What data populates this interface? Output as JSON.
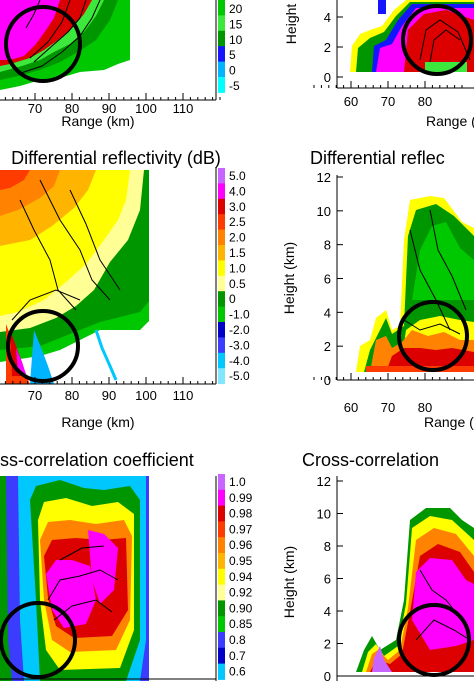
{
  "chart_data": [
    {
      "type": "heatmap",
      "title": "",
      "xlabel": "Range (km)",
      "x_ticks": [
        70,
        80,
        90,
        100,
        110
      ],
      "colorbar": [
        "20",
        "15",
        "10",
        "5",
        "0",
        "-5"
      ],
      "colorbar_colors": [
        "#00c800",
        "#3ce83c",
        "#009600",
        "#1414ff",
        "#00b4ff",
        "#00ffff"
      ],
      "circle_marker": true
    },
    {
      "type": "heatmap",
      "title": "",
      "ylabel": "Height (km)",
      "xlabel": "Range (km)",
      "x_ticks": [
        60,
        70,
        80
      ],
      "y_ticks": [
        0,
        2,
        4
      ]
    },
    {
      "type": "heatmap",
      "title": "Differential reflectivity (dB)",
      "xlabel": "Range (km)",
      "x_ticks": [
        70,
        80,
        90,
        100,
        110
      ],
      "colorbar": [
        "5.0",
        "4.0",
        "3.0",
        "2.5",
        "2.0",
        "1.5",
        "1.0",
        "0.5",
        "0",
        "-1.0",
        "-2.0",
        "-3.0",
        "-4.0",
        "-5.0"
      ],
      "colorbar_colors": [
        "#c864ff",
        "#ff00ff",
        "#dc0000",
        "#ff3c00",
        "#ff8200",
        "#ffb400",
        "#ffff00",
        "#ffff96",
        "#009600",
        "#00c800",
        "#0000c8",
        "#3c3cff",
        "#00c8ff",
        "#82e6ff"
      ]
    },
    {
      "type": "heatmap",
      "title": "Differential reflec",
      "ylabel": "Height (km)",
      "xlabel": "Range (km",
      "x_ticks": [
        60,
        70,
        80
      ],
      "y_ticks": [
        0,
        2,
        4,
        6,
        8,
        10,
        12
      ]
    },
    {
      "type": "heatmap",
      "title": "ss-correlation coefficient",
      "colorbar": [
        "1.0",
        "0.99",
        "0.98",
        "0.97",
        "0.96",
        "0.95",
        "0.94",
        "0.92",
        "0.90",
        "0.85",
        "0.8",
        "0.7",
        "0.6"
      ],
      "colorbar_colors": [
        "#c864ff",
        "#ff00ff",
        "#dc0000",
        "#ff3c00",
        "#ff8200",
        "#ffb400",
        "#ffff00",
        "#ffff96",
        "#009600",
        "#00c800",
        "#3c3cff",
        "#0000c8",
        "#00c8ff"
      ]
    },
    {
      "type": "heatmap",
      "title": "Cross-correlation",
      "ylabel": "Height (km)",
      "y_ticks": [
        0,
        2,
        4,
        6,
        8,
        10,
        12
      ]
    }
  ],
  "palette": {
    "magenta": "#ff00ff",
    "red": "#dc0000",
    "orange": "#ff8200",
    "yellow": "#ffff00",
    "green": "#009600",
    "light_green": "#3ce83c",
    "blue": "#1414ff",
    "cyan": "#00ffff"
  }
}
